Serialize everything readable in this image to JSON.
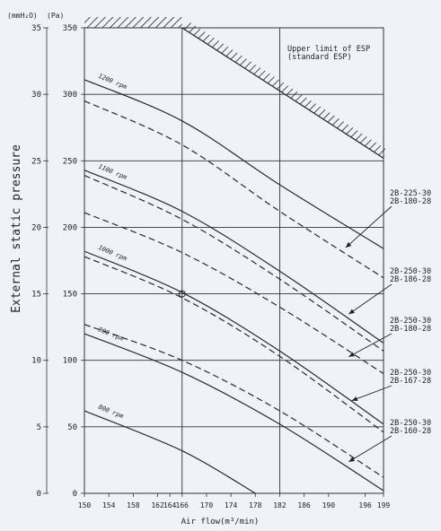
{
  "chart_data": {
    "type": "line",
    "xlabel": "Air flow(m³/min)",
    "ylabel": "External static pressure",
    "y_left_unit": "(mmH₂O)",
    "y_right_unit": "(Pa)",
    "xlim": [
      150,
      199
    ],
    "ylim_pa": [
      0,
      350
    ],
    "ylim_mmh2o": [
      0,
      35
    ],
    "x_ticks": [
      150,
      154,
      158,
      162,
      164,
      166,
      170,
      174,
      178,
      182,
      186,
      190,
      196,
      199
    ],
    "y_ticks_pa": [
      0,
      50,
      100,
      150,
      200,
      250,
      300,
      350
    ],
    "y_ticks_mmh2o": [
      0,
      5,
      10,
      15,
      20,
      25,
      30,
      35
    ],
    "grid": true,
    "series": [
      {
        "name": "1200 rpm",
        "style": "solid",
        "points": [
          [
            150,
            311
          ],
          [
            166,
            280
          ],
          [
            182,
            232
          ],
          [
            199,
            184
          ]
        ]
      },
      {
        "style": "dashed",
        "points": [
          [
            150,
            295
          ],
          [
            166,
            262
          ],
          [
            182,
            212
          ],
          [
            199,
            162
          ]
        ]
      },
      {
        "name": "1100 rpm",
        "style": "solid",
        "points": [
          [
            150,
            243
          ],
          [
            166,
            212
          ],
          [
            182,
            167
          ],
          [
            199,
            113
          ]
        ]
      },
      {
        "style": "dashed",
        "points": [
          [
            150,
            239
          ],
          [
            166,
            206
          ],
          [
            182,
            161
          ],
          [
            199,
            107
          ]
        ]
      },
      {
        "style": "dashed",
        "points": [
          [
            150,
            211
          ],
          [
            166,
            181
          ],
          [
            182,
            140
          ],
          [
            199,
            90
          ]
        ]
      },
      {
        "name": "1000 rpm",
        "style": "solid",
        "points": [
          [
            150,
            182
          ],
          [
            166,
            151
          ],
          [
            182,
            107
          ],
          [
            199,
            52
          ]
        ]
      },
      {
        "style": "dashed",
        "points": [
          [
            150,
            178
          ],
          [
            166,
            147
          ],
          [
            182,
            103
          ],
          [
            199,
            46
          ]
        ]
      },
      {
        "style": "dashed",
        "points": [
          [
            150,
            127
          ],
          [
            166,
            100
          ],
          [
            182,
            62
          ],
          [
            199,
            12
          ]
        ]
      },
      {
        "name": "900 rpm",
        "style": "solid",
        "points": [
          [
            150,
            120
          ],
          [
            166,
            91
          ],
          [
            182,
            52
          ],
          [
            199,
            2
          ]
        ]
      },
      {
        "name": "800 rpm",
        "style": "solid",
        "points": [
          [
            150,
            62
          ],
          [
            166,
            32
          ],
          [
            178,
            0
          ]
        ]
      }
    ],
    "limit_line": {
      "label": "Upper limit of ESP\n(standard ESP)",
      "points": [
        [
          166,
          350
        ],
        [
          199,
          252
        ]
      ],
      "flat_top": [
        [
          150,
          350
        ],
        [
          166,
          350
        ]
      ]
    },
    "operating_point": [
      166,
      150
    ],
    "annotations": [
      {
        "lines": [
          "2B-225-30",
          "2B-180-28"
        ],
        "arrow_to": [
          192.5,
          184
        ]
      },
      {
        "lines": [
          "2B-250-30",
          "2B-186-28"
        ],
        "arrow_to": [
          193,
          134
        ]
      },
      {
        "lines": [
          "2B-250-30",
          "2B-180-28"
        ],
        "arrow_to": [
          193,
          102
        ]
      },
      {
        "lines": [
          "2B-250-30",
          "2B-167-28"
        ],
        "arrow_to": [
          193.5,
          69
        ]
      },
      {
        "lines": [
          "2B-250-30",
          "2B-160-28"
        ],
        "arrow_to": [
          193,
          23
        ]
      }
    ]
  }
}
